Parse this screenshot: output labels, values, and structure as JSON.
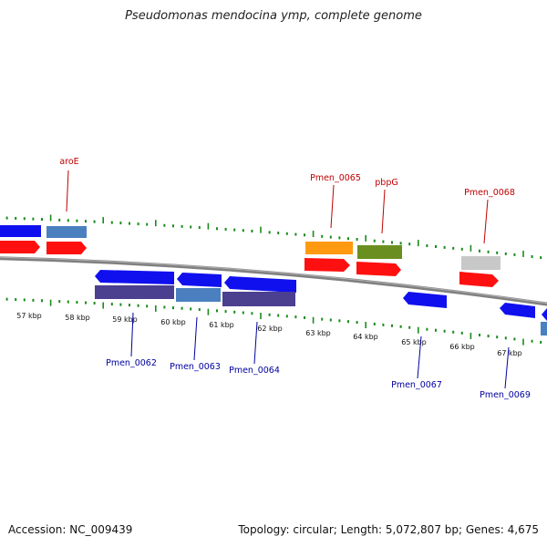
{
  "title": "Pseudomonas mendocina ymp, complete genome",
  "footer": {
    "accession": "Accession: NC_009439",
    "summary": "Topology: circular; Length: 5,072,807 bp; Genes: 4,675"
  },
  "colors": {
    "backbone": "#808080",
    "tick": "#1a8a1a",
    "label_forward": "#c00000",
    "label_reverse": "#0000a0",
    "gene_red": "#ff1010",
    "gene_blue": "#1010ee",
    "cds_steelblue": "#4a80bf",
    "cds_purple": "#4b3f8f",
    "cds_orange": "#ff9a10",
    "cds_olive": "#6a8f20",
    "cds_gray": "#c8c8c8"
  },
  "scale": {
    "kbp_labels": [
      "57 kbp",
      "58 kbp",
      "59 kbp",
      "60 kbp",
      "61 kbp",
      "62 kbp",
      "63 kbp",
      "64 kbp",
      "65 kbp",
      "66 kbp",
      "67 kbp"
    ]
  },
  "gene_labels_forward": [
    "aroE",
    "Pmen_0065",
    "pbpG",
    "Pmen_0068"
  ],
  "gene_labels_reverse": [
    "Pmen_0062",
    "Pmen_0063",
    "Pmen_0064",
    "Pmen_0067",
    "Pmen_0069"
  ]
}
